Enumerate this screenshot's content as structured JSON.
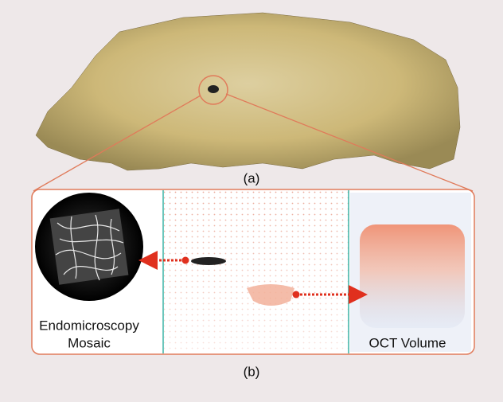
{
  "figure": {
    "label_a": "(a)",
    "label_b": "(b)",
    "left_caption": [
      "Endomicroscopy",
      "Mosaic"
    ],
    "right_caption": "OCT Volume"
  }
}
